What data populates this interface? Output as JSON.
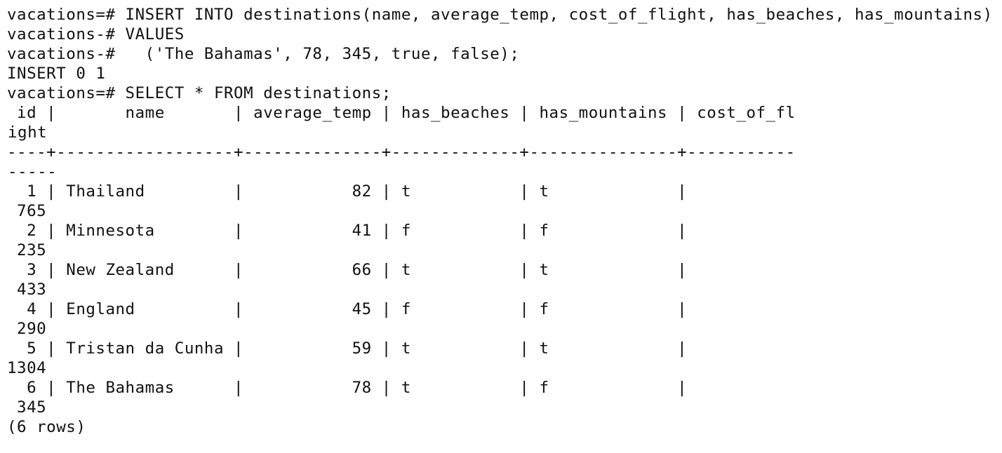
{
  "terminal": {
    "lines": [
      {
        "text": "vacations=# INSERT INTO destinations(name, average_temp, cost_of_flight, has_beaches, has_mountains)"
      },
      {
        "text": "vacations-# VALUES"
      },
      {
        "text": "vacations-#   ('The Bahamas', 78, 345, true, false);"
      },
      {
        "text": "INSERT 0 1"
      },
      {
        "text": "vacations=# SELECT * FROM destinations;"
      },
      {
        "text": " id |       name       | average_temp | has_beaches | has_mountains | cost_of_fl"
      },
      {
        "text": "ight",
        "wrapped": true
      },
      {
        "text": "----+------------------+--------------+-------------+---------------+-----------"
      },
      {
        "text": "-----",
        "wrapped": true
      },
      {
        "text": "  1 | Thailand         |           82 | t           | t             |"
      },
      {
        "text": " 765"
      },
      {
        "text": "  2 | Minnesota        |           41 | f           | f             |"
      },
      {
        "text": " 235"
      },
      {
        "text": "  3 | New Zealand      |           66 | t           | t             |"
      },
      {
        "text": " 433"
      },
      {
        "text": "  4 | England          |           45 | f           | f             |"
      },
      {
        "text": " 290"
      },
      {
        "text": "  5 | Tristan da Cunha |           59 | t           | t             |"
      },
      {
        "text": "1304"
      },
      {
        "text": "  6 | The Bahamas      |           78 | t           | f             |"
      },
      {
        "text": " 345"
      },
      {
        "text": "(6 rows)"
      }
    ]
  }
}
